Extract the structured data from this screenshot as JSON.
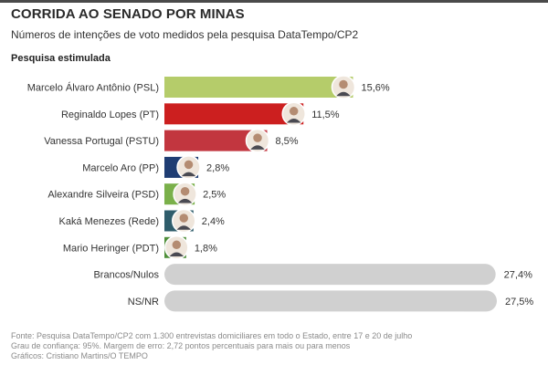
{
  "header": {
    "title": "CORRIDA AO SENADO POR MINAS",
    "subtitle": "Números de intenções de voto medidos pela pesquisa DataTempo/CP2",
    "section_label": "Pesquisa estimulada"
  },
  "chart_data": {
    "type": "bar",
    "orientation": "horizontal",
    "title": "CORRIDA AO SENADO POR MINAS",
    "subtitle": "Números de intenções de voto medidos pela pesquisa DataTempo/CP2",
    "categories": [
      "Marcelo Álvaro Antônio (PSL)",
      "Reginaldo Lopes (PT)",
      "Vanessa Portugal (PSTU)",
      "Marcelo Aro (PP)",
      "Alexandre Silveira (PSD)",
      "Kaká Menezes (Rede)",
      "Mario Heringer (PDT)",
      "Brancos/Nulos",
      "NS/NR"
    ],
    "values": [
      15.6,
      11.5,
      8.5,
      2.8,
      2.5,
      2.4,
      1.8,
      27.4,
      27.5
    ],
    "value_labels": [
      "15,6%",
      "11,5%",
      "8,5%",
      "2,8%",
      "2,5%",
      "2,4%",
      "1,8%",
      "27,4%",
      "27,5%"
    ],
    "colors": [
      "#b5cc6a",
      "#cc1f1f",
      "#c2363f",
      "#1f3d73",
      "#7ab04a",
      "#2f5d6b",
      "#4f8f3a",
      "#d0d0d0",
      "#d0d0d0"
    ],
    "has_avatar": [
      true,
      true,
      true,
      true,
      true,
      true,
      true,
      false,
      false
    ],
    "xlim": [
      0,
      27.5
    ],
    "xlabel": "",
    "ylabel": "",
    "grid": false,
    "legend": "none"
  },
  "footer": {
    "line1": "Fonte: Pesquisa DataTempo/CP2 com 1.300 entrevistas domiciliares em todo o Estado, entre 17 e 20 de julho",
    "line2": "Grau de confiança: 95%. Margem de erro: 2,72 pontos percentuais para mais ou para menos",
    "line3": "Gráficos: Cristiano Martins/O TEMPO"
  }
}
